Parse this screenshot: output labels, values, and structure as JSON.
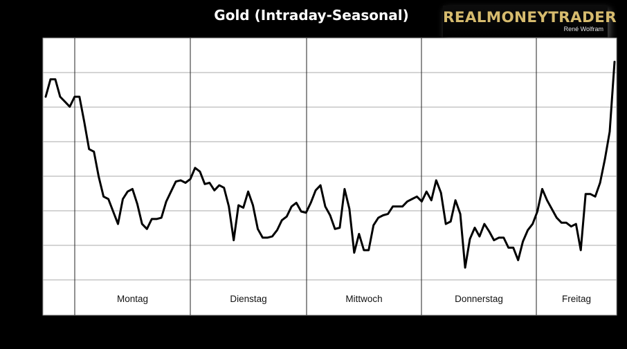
{
  "logo": {
    "brand": "REALMONEYTRADER",
    "author": "René Wolfram",
    "color": "#d6bb6e"
  },
  "chart_data": {
    "type": "line",
    "title": "Gold (Intraday-Seasonal)",
    "xlabel": "",
    "ylabel": "",
    "grid": true,
    "y_ticks_visible": false,
    "line_color": "#000000",
    "days": [
      "Montag",
      "Dienstag",
      "Mittwoch",
      "Donnerstag",
      "Freitag"
    ],
    "ylim": [
      0,
      100
    ],
    "series": [
      {
        "values": [
          82,
          89,
          89,
          82,
          80,
          78,
          82,
          82,
          72,
          61,
          60,
          50,
          42,
          41,
          36,
          31,
          41,
          44,
          45,
          39,
          31,
          29,
          33,
          33,
          33.5,
          40,
          44,
          48,
          48.5,
          47.5,
          49,
          53.5,
          52,
          47,
          47.5,
          44.5,
          46.5,
          45.5,
          38,
          24.5,
          38.5,
          37.5,
          44,
          38.5,
          29,
          25.5,
          25.5,
          26,
          28.5,
          32.5,
          34,
          38,
          39.5,
          36,
          35.5,
          39.5,
          44.5,
          46.5,
          38,
          34.5,
          29,
          29.5,
          45,
          37,
          19.5,
          27,
          20.5,
          20.5,
          30.5,
          33.5,
          34.5,
          35,
          38,
          38,
          38,
          40,
          41,
          42,
          40,
          44,
          40.5,
          48.5,
          43.5,
          31,
          32,
          40.5,
          35,
          13.5,
          25,
          29.5,
          26,
          31,
          28,
          24.5,
          25.5,
          25.5,
          21.5,
          21.5,
          16.5,
          24,
          28.5,
          31,
          36,
          45,
          40.5,
          37,
          33.5,
          31.5,
          31.5,
          30,
          31,
          20.5,
          43,
          43,
          42,
          47.5,
          57,
          68,
          96
        ]
      }
    ]
  }
}
